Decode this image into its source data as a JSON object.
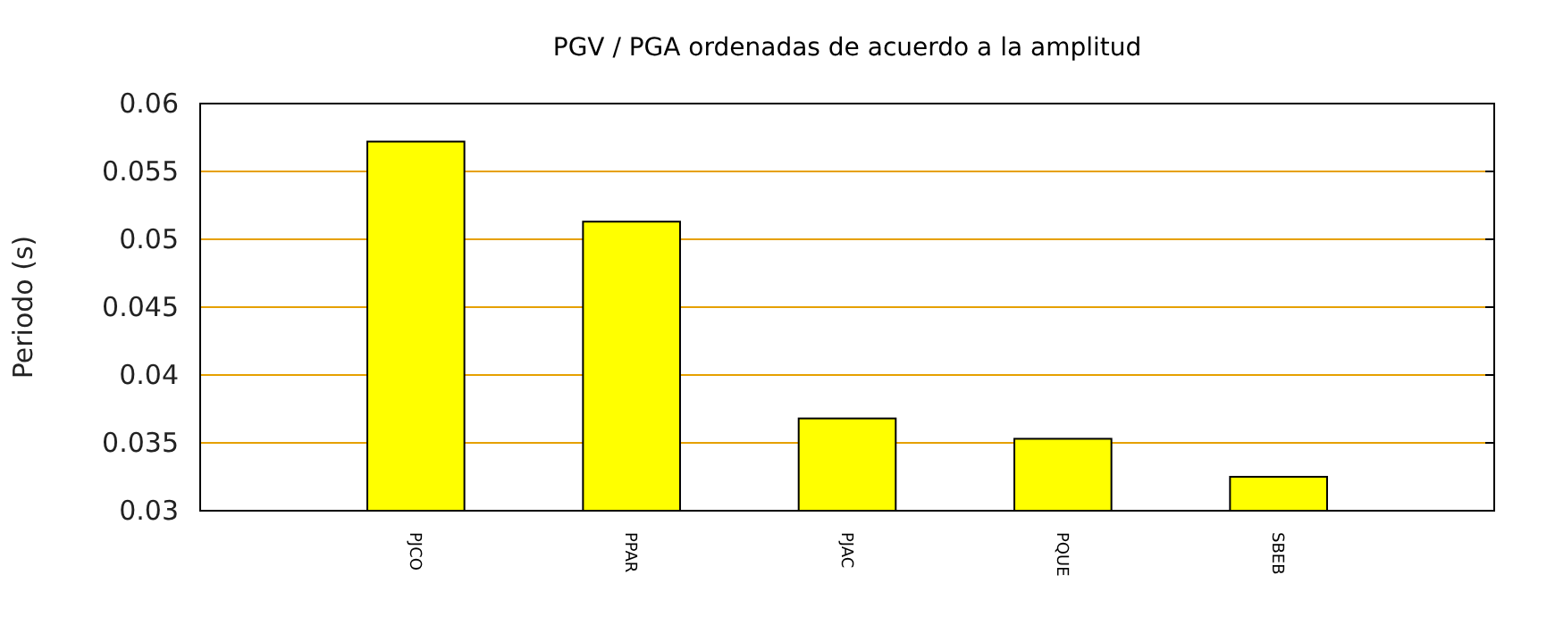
{
  "chart_data": {
    "type": "bar",
    "title": "PGV / PGA ordenadas de acuerdo a la amplitud",
    "ylabel": "Periodo (s)",
    "categories": [
      "PJCO",
      "PPAR",
      "PJAC",
      "PQUE",
      "SBEB"
    ],
    "values": [
      0.0572,
      0.0513,
      0.0368,
      0.0353,
      0.0325
    ],
    "color": "#ffff00",
    "ylim": [
      0.03,
      0.06
    ],
    "yticks": [
      0.03,
      0.035,
      0.04,
      0.045,
      0.05,
      0.055,
      0.06
    ],
    "grid": "y"
  }
}
